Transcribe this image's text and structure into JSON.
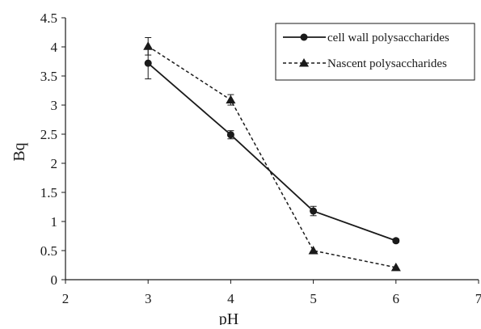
{
  "chart_data": {
    "type": "line",
    "title": "",
    "xlabel": "pH",
    "ylabel": "Bq",
    "xlim": [
      2,
      7
    ],
    "ylim": [
      0,
      4.5
    ],
    "x_ticks": [
      "2",
      "3",
      "4",
      "5",
      "6",
      "7"
    ],
    "y_ticks": [
      "0",
      "0.5",
      "1",
      "1.5",
      "2",
      "2.5",
      "3",
      "3.5",
      "4",
      "4.5"
    ],
    "grid": false,
    "legend_position": "top-right",
    "series": [
      {
        "name": "cell wall polysaccharides",
        "marker": "circle",
        "line_style": "solid",
        "color": "#1a1a1a",
        "x": [
          3,
          4,
          5,
          6
        ],
        "y": [
          3.72,
          2.49,
          1.18,
          0.67
        ],
        "error": [
          0.27,
          0.07,
          0.08,
          0.03
        ]
      },
      {
        "name": "Nascent polysaccharides",
        "marker": "triangle",
        "line_style": "dashed",
        "color": "#1a1a1a",
        "x": [
          3,
          4,
          5,
          6
        ],
        "y": [
          4.01,
          3.09,
          0.5,
          0.21
        ],
        "error": [
          0.15,
          0.09,
          0.0,
          0.0
        ]
      }
    ]
  }
}
